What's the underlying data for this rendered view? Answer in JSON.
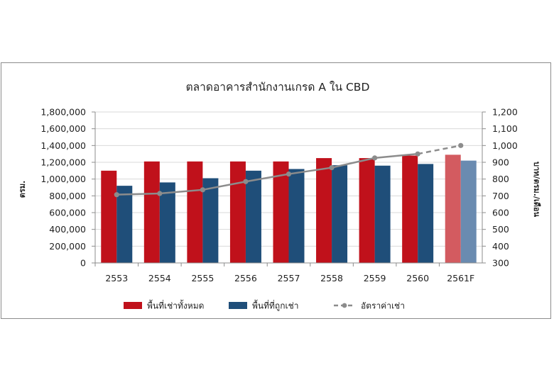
{
  "chart_data": {
    "type": "bar",
    "title": "ตลาดอาคารสำนักงานเกรด A ใน CBD",
    "ylabel": "ตรม.",
    "y2label": "บาท/ตรม./เดือน",
    "categories": [
      "2553",
      "2554",
      "2555",
      "2556",
      "2557",
      "2558",
      "2559",
      "2560",
      "2561F"
    ],
    "ylim": [
      0,
      1800000
    ],
    "y_ticks": [
      "0",
      "200,000",
      "400,000",
      "600,000",
      "800,000",
      "1,000,000",
      "1,200,000",
      "1,400,000",
      "1,600,000",
      "1,800,000"
    ],
    "y2lim": [
      300,
      1200
    ],
    "y2_ticks": [
      "300",
      "400",
      "500",
      "600",
      "700",
      "800",
      "900",
      "1,000",
      "1,100",
      "1,200"
    ],
    "grid": true,
    "legend_position": "bottom",
    "series": [
      {
        "name": "พื้นที่เช่าทั้งหมด",
        "kind": "bar",
        "axis": "left",
        "color": "#c0111b",
        "forecast_color": "#d35b60",
        "values": [
          1100000,
          1210000,
          1210000,
          1210000,
          1210000,
          1250000,
          1250000,
          1280000,
          1290000
        ]
      },
      {
        "name": "พื้นที่ที่ถูกเช่า",
        "kind": "bar",
        "axis": "left",
        "color": "#1f4e79",
        "forecast_color": "#6a8bb0",
        "values": [
          920000,
          960000,
          1010000,
          1100000,
          1120000,
          1165000,
          1160000,
          1180000,
          1220000
        ]
      },
      {
        "name": "อัตราค่าเช่า",
        "kind": "line",
        "axis": "right",
        "color": "#8c8c8c",
        "values": [
          707,
          714,
          736,
          785,
          830,
          868,
          926,
          950,
          1000
        ],
        "forecast_from_index": 7
      }
    ]
  }
}
